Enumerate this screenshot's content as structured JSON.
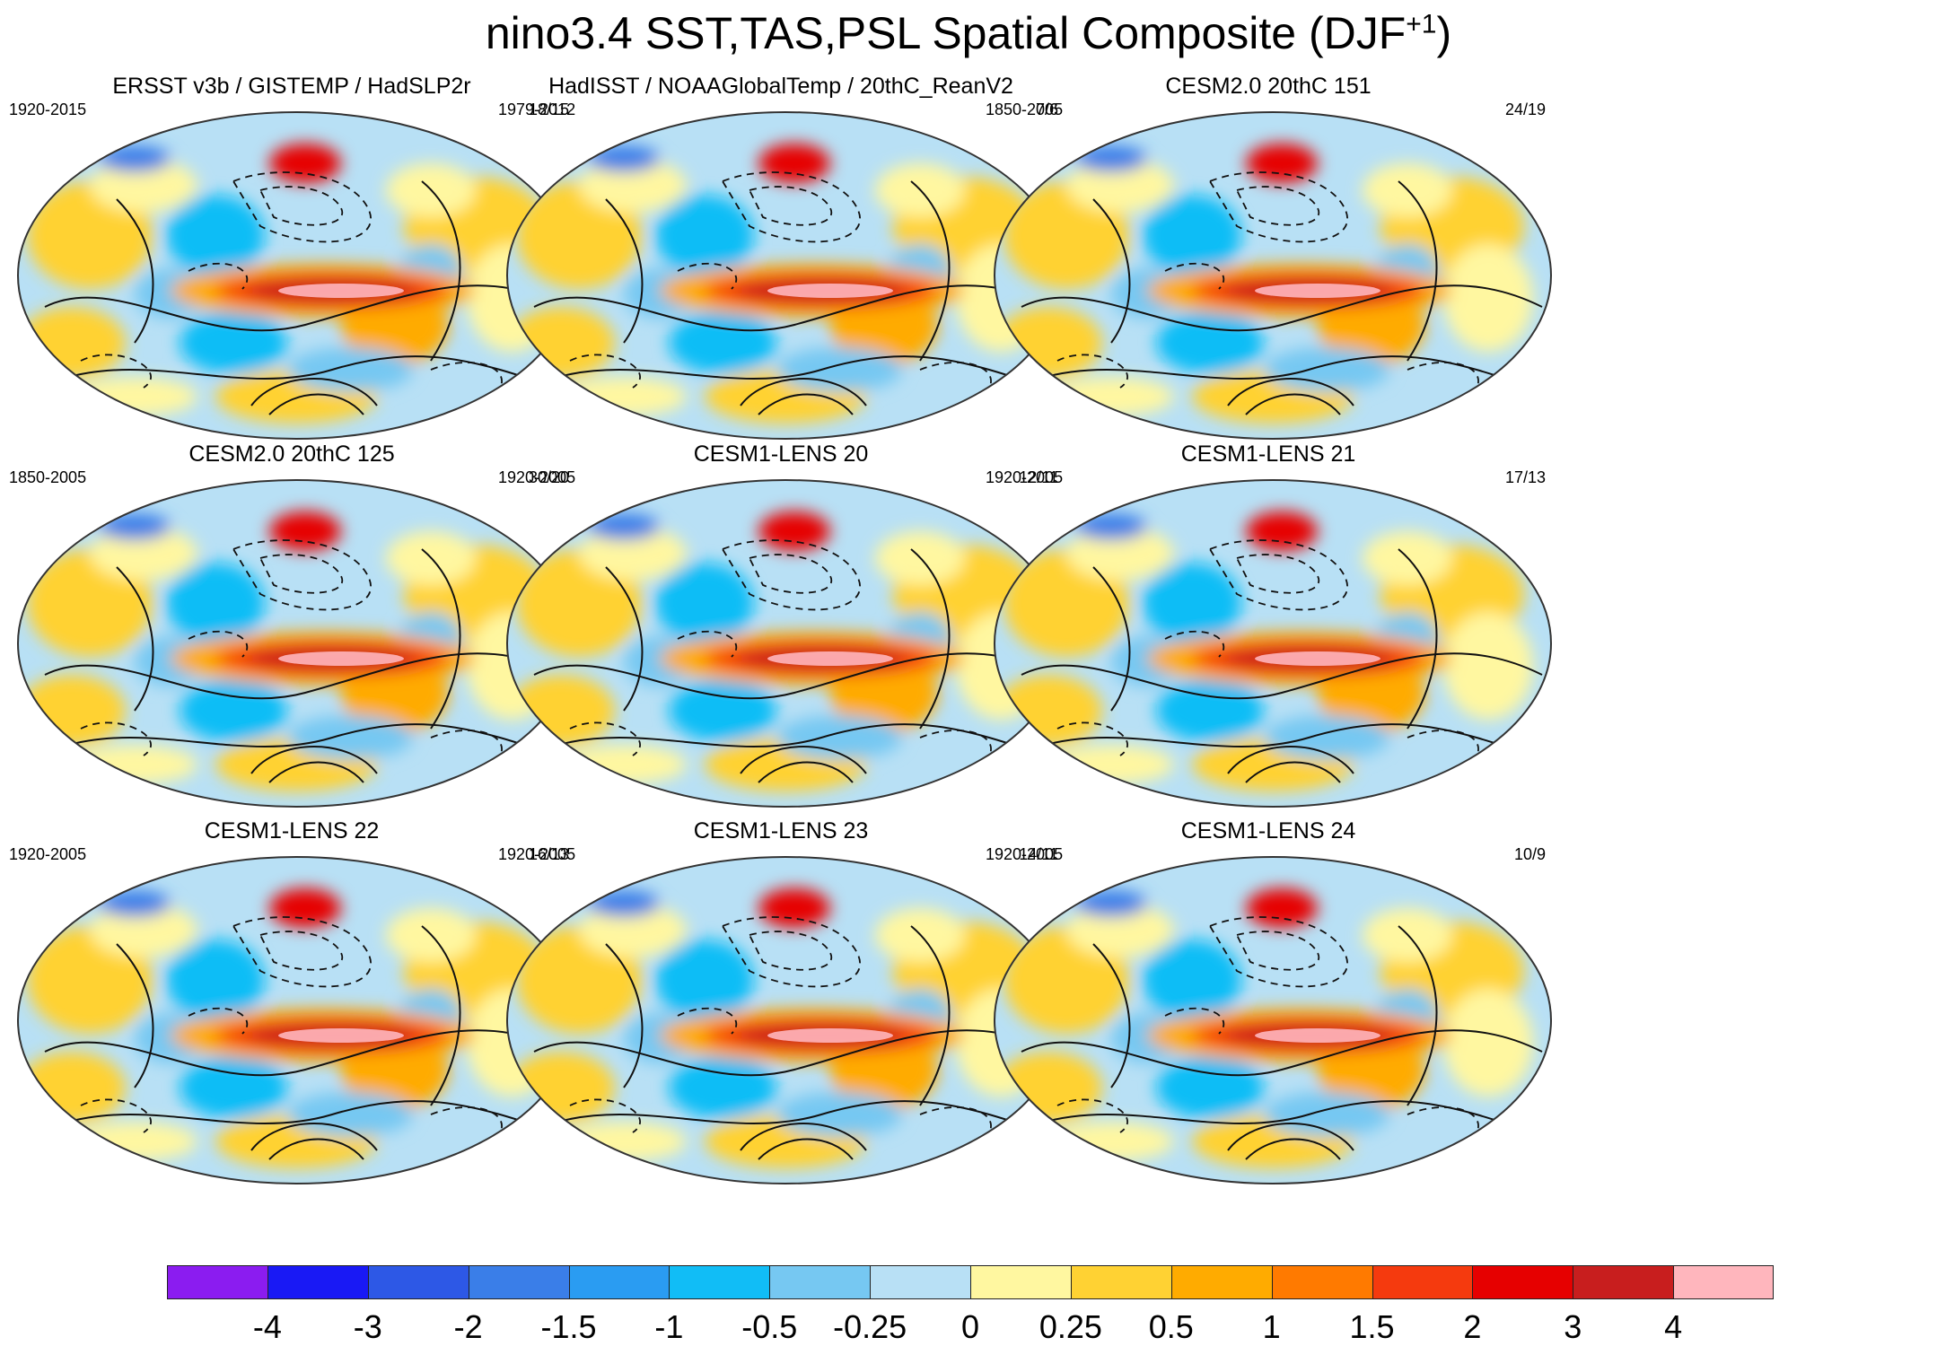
{
  "title": {
    "main": "nino3.4 SST,TAS,PSL Spatial Composite (DJF",
    "superscript": "+1",
    "close": ")"
  },
  "panels": [
    {
      "title": "ERSST v3b / GISTEMP / HadSLP2r",
      "period": "1920-2015",
      "count": "18/15"
    },
    {
      "title": "HadISST / NOAAGlobalTemp / 20thC_ReanV2",
      "period": "1979-2012",
      "count": "7/6"
    },
    {
      "title": "CESM2.0 20thC 151",
      "period": "1850-2005",
      "count": "24/19"
    },
    {
      "title": "CESM2.0 20thC 125",
      "period": "1850-2005",
      "count": "30/20"
    },
    {
      "title": "CESM1-LENS 20",
      "period": "1920-2005",
      "count": "12/11"
    },
    {
      "title": "CESM1-LENS 21",
      "period": "1920-2005",
      "count": "17/13"
    },
    {
      "title": "CESM1-LENS 22",
      "period": "1920-2005",
      "count": "16/13"
    },
    {
      "title": "CESM1-LENS 23",
      "period": "1920-2005",
      "count": "14/11"
    },
    {
      "title": "CESM1-LENS 24",
      "period": "1920-2005",
      "count": "10/9"
    }
  ],
  "colorbar": {
    "labels": [
      "-4",
      "-3",
      "-2",
      "-1.5",
      "-1",
      "-0.5",
      "-0.25",
      "0",
      "0.25",
      "0.5",
      "1",
      "1.5",
      "2",
      "3",
      "4"
    ],
    "colors": [
      "#8b1cf0",
      "#1919f5",
      "#2d58e6",
      "#3a7ee8",
      "#2a9cf2",
      "#11bdf6",
      "#76c8f2",
      "#b8e0f5",
      "#fff7a0",
      "#ffd233",
      "#ffab00",
      "#ff7a00",
      "#f53a0e",
      "#e60000",
      "#c81e1e",
      "#ffb6bd"
    ]
  }
}
